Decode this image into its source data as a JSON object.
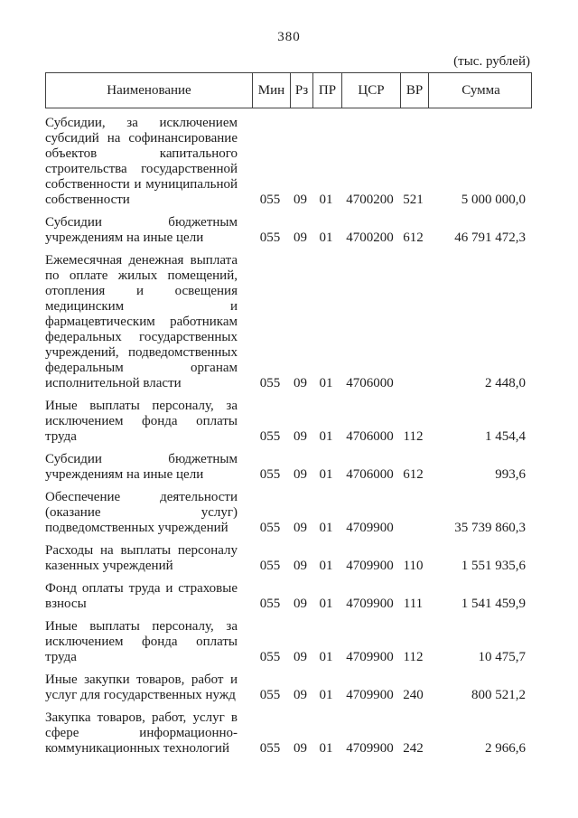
{
  "page": {
    "number": "380",
    "units_note": "(тыс. рублей)"
  },
  "table": {
    "headers": {
      "name": "Наименование",
      "min": "Мин",
      "rz": "Рз",
      "pr": "ПР",
      "csr": "ЦСР",
      "vr": "ВР",
      "sum": "Сумма"
    },
    "rows": [
      {
        "name": "Субсидии, за исключением субсидий на софинансирование объектов капитального строительства государственной собственности и муниципальной собственности",
        "min": "055",
        "rz": "09",
        "pr": "01",
        "csr": "4700200",
        "vr": "521",
        "sum": "5 000 000,0"
      },
      {
        "name": "Субсидии бюджетным учреждениям на иные цели",
        "min": "055",
        "rz": "09",
        "pr": "01",
        "csr": "4700200",
        "vr": "612",
        "sum": "46 791 472,3"
      },
      {
        "name": "Ежемесячная денежная выплата по оплате жилых помещений, отопления и освещения медицинским и фармацевтическим работникам федеральных государственных учреждений, подведомственных федеральным органам исполнительной власти",
        "min": "055",
        "rz": "09",
        "pr": "01",
        "csr": "4706000",
        "vr": "",
        "sum": "2 448,0"
      },
      {
        "name": "Иные выплаты персоналу, за исключением фонда оплаты труда",
        "min": "055",
        "rz": "09",
        "pr": "01",
        "csr": "4706000",
        "vr": "112",
        "sum": "1 454,4"
      },
      {
        "name": "Субсидии бюджетным учреждениям на иные цели",
        "min": "055",
        "rz": "09",
        "pr": "01",
        "csr": "4706000",
        "vr": "612",
        "sum": "993,6"
      },
      {
        "name": "Обеспечение деятельности (оказание услуг) подведомственных учреждений",
        "min": "055",
        "rz": "09",
        "pr": "01",
        "csr": "4709900",
        "vr": "",
        "sum": "35 739 860,3"
      },
      {
        "name": "Расходы на выплаты персоналу казенных учреждений",
        "min": "055",
        "rz": "09",
        "pr": "01",
        "csr": "4709900",
        "vr": "110",
        "sum": "1 551 935,6"
      },
      {
        "name": "Фонд оплаты труда и страховые взносы",
        "min": "055",
        "rz": "09",
        "pr": "01",
        "csr": "4709900",
        "vr": "111",
        "sum": "1 541 459,9"
      },
      {
        "name": "Иные выплаты персоналу, за исключением фонда оплаты труда",
        "min": "055",
        "rz": "09",
        "pr": "01",
        "csr": "4709900",
        "vr": "112",
        "sum": "10 475,7"
      },
      {
        "name": "Иные закупки товаров, работ и услуг для государственных нужд",
        "min": "055",
        "rz": "09",
        "pr": "01",
        "csr": "4709900",
        "vr": "240",
        "sum": "800 521,2"
      },
      {
        "name": "Закупка товаров, работ, услуг в сфере информационно-коммуникационных технологий",
        "min": "055",
        "rz": "09",
        "pr": "01",
        "csr": "4709900",
        "vr": "242",
        "sum": "2 966,6"
      }
    ]
  }
}
